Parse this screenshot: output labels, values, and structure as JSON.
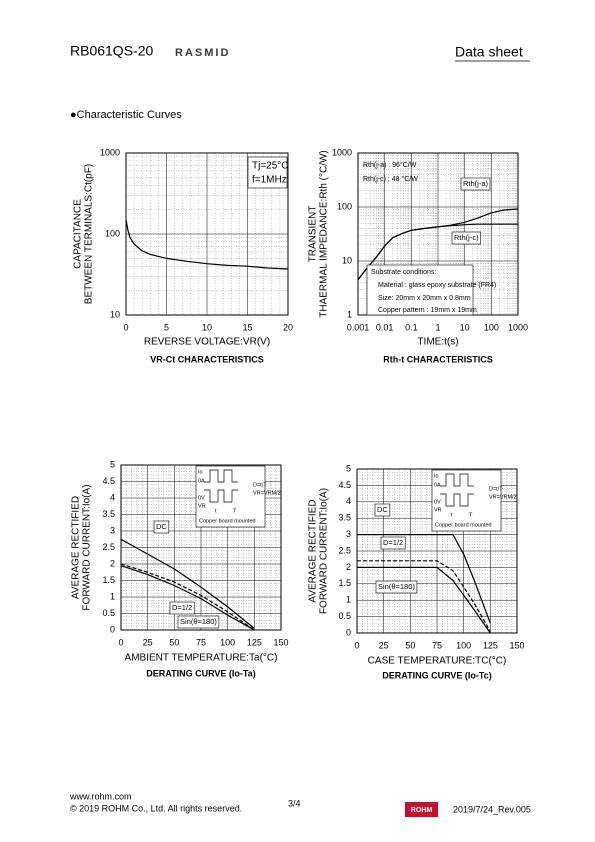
{
  "header": {
    "part": "RB061QS-20",
    "brand": "RASMID",
    "doc": "Data sheet"
  },
  "section": "●Characteristic Curves",
  "footer": {
    "site": "www.rohm.com",
    "copyright": "© 2019 ROHM Co., Ltd. All rights reserved.",
    "page": "3/4",
    "logo": "ROHM",
    "rev": "2019/7/24_Rev.005"
  },
  "chart_data": [
    {
      "type": "line",
      "title": "VR-Ct CHARACTERISTICS",
      "xlabel": "REVERSE VOLTAGE:VR(V)",
      "ylabel": [
        "CAPACITANCE",
        "BETWEEN TERMINALS:Ct(pF)"
      ],
      "x": [
        0,
        0.25,
        0.5,
        1,
        2,
        3,
        5,
        7.5,
        10,
        12.5,
        15,
        17.5,
        20
      ],
      "series": [
        {
          "color": "#000000",
          "dash": "solid",
          "values": [
            150,
            110,
            90,
            75,
            62,
            56,
            50,
            46,
            43,
            41,
            40,
            38,
            37
          ]
        }
      ],
      "xlim": [
        0,
        20
      ],
      "xticks": [
        0,
        5,
        10,
        15,
        20
      ],
      "ylim": [
        10,
        1000
      ],
      "yticks": [
        10,
        100,
        1000
      ],
      "ylog": true,
      "grid": true,
      "annotations": [
        "Tj=25°C",
        "f=1MHz"
      ]
    },
    {
      "type": "line",
      "title": "Rth-t CHARACTERISTICS",
      "xlabel": "TIME:t(s)",
      "ylabel": [
        "TRANSIENT",
        "THAERMAL IMPEDANCE:Rth (°C/W)"
      ],
      "x": [
        0.001,
        0.002,
        0.005,
        0.01,
        0.02,
        0.05,
        0.1,
        0.3,
        1,
        3,
        10,
        30,
        100,
        300,
        1000
      ],
      "series": [
        {
          "name": "Rth(j-a)",
          "color": "#000000",
          "dash": "solid",
          "values": [
            4.5,
            7,
            12,
            19,
            27,
            33,
            37,
            40,
            43,
            46,
            52,
            62,
            78,
            88,
            92
          ]
        },
        {
          "name": "Rth(j-c)",
          "color": "#000000",
          "dash": "solid",
          "values": [
            4.5,
            7,
            12,
            19,
            27,
            33,
            37,
            40,
            43,
            45,
            47,
            48,
            48,
            48,
            48
          ]
        }
      ],
      "xlim": [
        0.001,
        1000
      ],
      "xticks": [
        0.001,
        0.01,
        0.1,
        1,
        10,
        100,
        1000
      ],
      "xlog": true,
      "ylim": [
        1,
        1000
      ],
      "yticks": [
        1,
        10,
        100,
        1000
      ],
      "ylog": true,
      "grid": true,
      "annotations": [
        "Rth(j-a) : 96°C/W",
        "Rth(j-c) : 48 °C/W",
        "Substrate conditions:",
        "Material : glass epoxy substrate (FR4)",
        "Size: 20mm x 20mm x 0.8mm",
        "Copper pattern : 19mm x 19mm"
      ]
    },
    {
      "type": "line",
      "title": "DERATING CURVE (Io-Ta)",
      "xlabel": "AMBIENT TEMPERATURE:Ta(°C)",
      "ylabel": [
        "AVERAGE RECTIFIED",
        "FORWARD CURRENT:Io(A)"
      ],
      "x": [
        0,
        25,
        50,
        75,
        100,
        125
      ],
      "series": [
        {
          "name": "DC",
          "color": "#000000",
          "dash": "solid",
          "values": [
            2.75,
            2.3,
            1.85,
            1.3,
            0.7,
            0.05
          ]
        },
        {
          "name": "D=1/2",
          "color": "#000000",
          "dash": "dashed",
          "values": [
            2.0,
            1.75,
            1.45,
            1.05,
            0.55,
            0
          ]
        },
        {
          "name": "Sin(θ=180)",
          "color": "#000000",
          "dash": "solid",
          "values": [
            1.95,
            1.68,
            1.35,
            0.95,
            0.45,
            0
          ]
        }
      ],
      "xlim": [
        0,
        150
      ],
      "xticks": [
        0,
        25,
        50,
        75,
        100,
        125,
        150
      ],
      "ylim": [
        0,
        5
      ],
      "yticks": [
        0,
        0.5,
        1,
        1.5,
        2,
        2.5,
        3,
        3.5,
        4,
        4.5,
        5
      ],
      "grid": true,
      "annotations": [
        "Io",
        "0A",
        "0V",
        "VR",
        "t",
        "T",
        "D=t/T",
        "VR=VRM/2",
        "Copper board mounted"
      ]
    },
    {
      "type": "line",
      "title": "DERATING CURVE (Io-Tc)",
      "xlabel": "CASE TEMPERATURE:TC(°C)",
      "ylabel": [
        "AVERAGE RECTIFIED",
        "FORWARD CURRENT:Io(A)"
      ],
      "x": [
        0,
        25,
        50,
        75,
        90,
        100,
        110,
        125
      ],
      "series": [
        {
          "name": "DC",
          "color": "#000000",
          "dash": "solid",
          "values": [
            3,
            3,
            3,
            3,
            3,
            2.4,
            1.6,
            0.3
          ]
        },
        {
          "name": "D=1/2",
          "color": "#000000",
          "dash": "dashed",
          "values": [
            2.2,
            2.2,
            2.2,
            2.2,
            1.9,
            1.4,
            0.9,
            0.05
          ]
        },
        {
          "name": "Sin(θ=180)",
          "color": "#000000",
          "dash": "solid",
          "values": [
            2,
            2,
            2,
            2,
            1.6,
            1.15,
            0.7,
            0
          ]
        }
      ],
      "xlim": [
        0,
        150
      ],
      "xticks": [
        0,
        25,
        50,
        75,
        100,
        125,
        150
      ],
      "ylim": [
        0,
        5
      ],
      "yticks": [
        0,
        0.5,
        1,
        1.5,
        2,
        2.5,
        3,
        3.5,
        4,
        4.5,
        5
      ],
      "grid": true,
      "annotations": [
        "Io",
        "0A",
        "0V",
        "VR",
        "t",
        "T",
        "D=t/T",
        "VR=VRM/2",
        "Copper board mounted"
      ]
    }
  ]
}
